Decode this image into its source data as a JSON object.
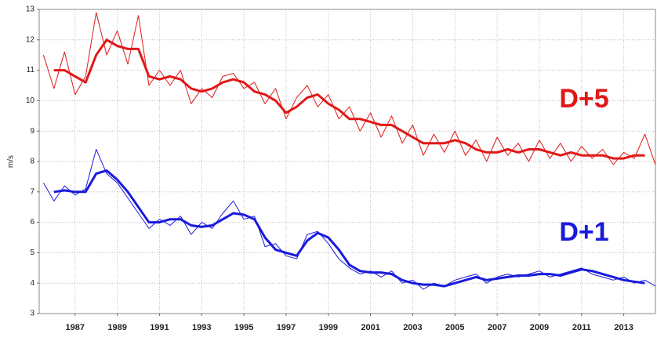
{
  "chart_data": {
    "type": "line",
    "y_label": "m/s",
    "x": [
      1985.5,
      1986,
      1986.5,
      1987,
      1987.5,
      1988,
      1988.5,
      1989,
      1989.5,
      1990,
      1990.5,
      1991,
      1991.5,
      1992,
      1992.5,
      1993,
      1993.5,
      1994,
      1994.5,
      1995,
      1995.5,
      1996,
      1996.5,
      1997,
      1997.5,
      1998,
      1998.5,
      1999,
      1999.5,
      2000,
      2000.5,
      2001,
      2001.5,
      2002,
      2002.5,
      2003,
      2003.5,
      2004,
      2004.5,
      2005,
      2005.5,
      2006,
      2006.5,
      2007,
      2007.5,
      2008,
      2008.5,
      2009,
      2009.5,
      2010,
      2010.5,
      2011,
      2011.5,
      2012,
      2012.5,
      2013,
      2013.5,
      2014,
      2014.5
    ],
    "series": [
      {
        "color": "#e01818",
        "width": 1,
        "values": [
          11.5,
          10.4,
          11.6,
          10.2,
          10.8,
          12.9,
          11.5,
          12.3,
          11.2,
          12.8,
          10.5,
          11.0,
          10.5,
          11.0,
          9.9,
          10.4,
          10.1,
          10.8,
          10.9,
          10.4,
          10.6,
          9.9,
          10.4,
          9.4,
          10.1,
          10.5,
          9.8,
          10.2,
          9.4,
          9.8,
          9.0,
          9.6,
          8.8,
          9.5,
          8.6,
          9.2,
          8.2,
          8.9,
          8.3,
          9.0,
          8.2,
          8.7,
          8.0,
          8.8,
          8.2,
          8.6,
          8.0,
          8.7,
          8.1,
          8.6,
          8.0,
          8.5,
          8.1,
          8.4,
          7.9,
          8.3,
          8.1,
          8.9,
          7.9
        ]
      },
      {
        "name": "D+5",
        "color": "#e01818",
        "width": 3,
        "values": [
          null,
          11.0,
          11.0,
          10.8,
          10.6,
          11.5,
          12.0,
          11.8,
          11.7,
          11.7,
          10.8,
          10.7,
          10.8,
          10.7,
          10.4,
          10.3,
          10.4,
          10.6,
          10.7,
          10.6,
          10.3,
          10.2,
          10.0,
          9.6,
          9.8,
          10.1,
          10.2,
          9.9,
          9.7,
          9.4,
          9.4,
          9.3,
          9.2,
          9.2,
          9.0,
          8.8,
          8.6,
          8.6,
          8.6,
          8.7,
          8.6,
          8.4,
          8.3,
          8.3,
          8.4,
          8.3,
          8.4,
          8.4,
          8.3,
          8.2,
          8.3,
          8.2,
          8.2,
          8.2,
          8.1,
          8.1,
          8.2,
          8.2,
          null
        ]
      },
      {
        "color": "#1a1adc",
        "width": 1,
        "values": [
          7.3,
          6.7,
          7.2,
          6.9,
          7.1,
          8.4,
          7.6,
          7.3,
          6.8,
          6.3,
          5.8,
          6.1,
          5.9,
          6.2,
          5.6,
          6.0,
          5.8,
          6.3,
          6.7,
          6.1,
          6.2,
          5.2,
          5.3,
          4.9,
          4.8,
          5.6,
          5.7,
          5.3,
          4.8,
          4.5,
          4.3,
          4.4,
          4.2,
          4.4,
          4.0,
          4.1,
          3.8,
          4.0,
          3.9,
          4.1,
          4.2,
          4.3,
          4.0,
          4.2,
          4.3,
          4.2,
          4.3,
          4.4,
          4.2,
          4.3,
          4.4,
          4.5,
          4.3,
          4.2,
          4.1,
          4.2,
          4.0,
          4.1,
          3.9
        ]
      },
      {
        "name": "D+1",
        "color": "#1a1adc",
        "width": 3,
        "values": [
          null,
          7.0,
          7.05,
          7.0,
          7.0,
          7.6,
          7.7,
          7.4,
          7.0,
          6.5,
          6.0,
          6.0,
          6.1,
          6.1,
          5.9,
          5.85,
          5.9,
          6.1,
          6.3,
          6.25,
          6.1,
          5.5,
          5.1,
          5.0,
          4.9,
          5.4,
          5.65,
          5.5,
          5.1,
          4.6,
          4.4,
          4.35,
          4.35,
          4.3,
          4.1,
          4.0,
          3.95,
          3.95,
          3.9,
          4.0,
          4.1,
          4.2,
          4.1,
          4.15,
          4.2,
          4.25,
          4.25,
          4.3,
          4.3,
          4.25,
          4.35,
          4.45,
          4.4,
          4.3,
          4.2,
          4.1,
          4.05,
          4.0,
          null
        ]
      }
    ],
    "xlim": [
      1985.3,
      2014.5
    ],
    "xticks": [
      1987,
      1989,
      1991,
      1993,
      1995,
      1997,
      1999,
      2001,
      2003,
      2005,
      2007,
      2009,
      2011,
      2013
    ],
    "ylim": [
      3,
      13
    ],
    "yticks": [
      3,
      4,
      5,
      6,
      7,
      8,
      9,
      10,
      11,
      12,
      13
    ],
    "grid": true
  }
}
